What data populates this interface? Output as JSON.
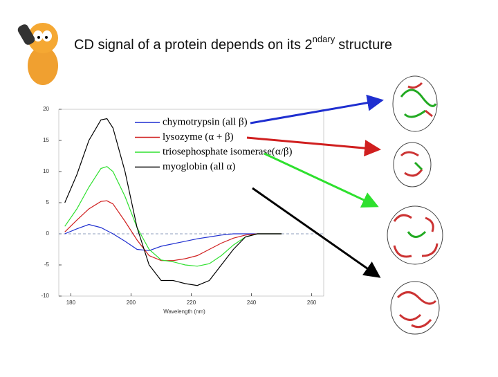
{
  "slide": {
    "title": "CD signal of a protein depends on its 2",
    "title_sup": "ndary",
    "title_end": "structure"
  },
  "chart_data": {
    "type": "line",
    "xlabel": "Wavelength (nm)",
    "x": [
      178,
      182,
      186,
      190,
      192,
      194,
      198,
      202,
      206,
      210,
      214,
      218,
      222,
      226,
      230,
      234,
      238,
      242,
      246,
      250
    ],
    "series": [
      {
        "name": "chymotrypsin (all β)",
        "color": "#1f2fd0",
        "values": [
          0,
          0.8,
          1.5,
          1,
          0.5,
          0,
          -1.2,
          -2.5,
          -2.7,
          -2,
          -1.6,
          -1.2,
          -0.8,
          -0.5,
          -0.2,
          0,
          0,
          0,
          0,
          0
        ]
      },
      {
        "name": "lysozyme (α + β)",
        "color": "#d01f1f",
        "values": [
          0.3,
          2.2,
          4,
          5.2,
          5.3,
          4.8,
          2,
          -1,
          -3.5,
          -4.3,
          -4.3,
          -4,
          -3.5,
          -2.5,
          -1.5,
          -0.7,
          -0.2,
          0,
          0,
          0
        ]
      },
      {
        "name": "triosephosphate isomerase(α/β)",
        "color": "#2ee02e",
        "values": [
          1.2,
          4,
          7.5,
          10.5,
          10.8,
          10,
          6,
          1,
          -2.5,
          -4.2,
          -4.5,
          -5,
          -5.2,
          -4.8,
          -3.5,
          -1.8,
          -0.5,
          0,
          0,
          0
        ]
      },
      {
        "name": "myoglobin (all α)",
        "color": "#000000",
        "values": [
          5,
          9.5,
          15,
          18.3,
          18.5,
          17,
          10,
          1,
          -5,
          -7.5,
          -7.5,
          -8,
          -8.3,
          -7.5,
          -5,
          -2.5,
          -0.5,
          0,
          0,
          0
        ]
      }
    ],
    "xlim": [
      176,
      264
    ],
    "xticks": [
      180,
      200,
      220,
      240,
      260
    ],
    "ylim": [
      -10,
      20
    ],
    "yticks": [
      -10,
      -5,
      0,
      5,
      10,
      15,
      20
    ],
    "reference_line": 0,
    "legend": "upper right"
  }
}
